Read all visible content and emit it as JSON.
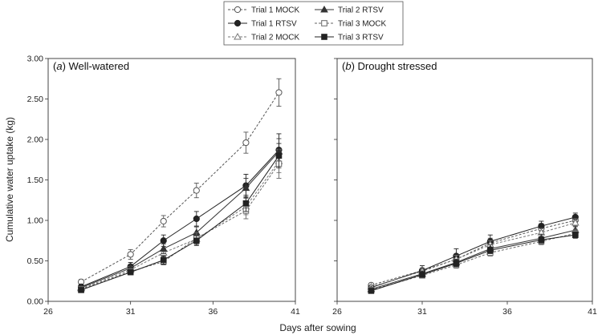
{
  "chart_data": {
    "type": "line",
    "legend": {
      "placement": "top-center",
      "entries": [
        {
          "label": "Trial 1 MOCK",
          "series": "Trial 1 MOCK"
        },
        {
          "label": "Trial 2 RTSV",
          "series": "Trial 2 RTSV"
        },
        {
          "label": "Trial 1 RTSV",
          "series": "Trial 1 RTSV"
        },
        {
          "label": "Trial 3 MOCK",
          "series": "Trial 3 MOCK"
        },
        {
          "label": "Trial 2 MOCK",
          "series": "Trial 2 MOCK"
        },
        {
          "label": "Trial 3 RTSV",
          "series": "Trial 3 RTSV"
        }
      ]
    },
    "xlabel": "Days after sowing",
    "ylabel": "Cumulative water uptake (kg)",
    "xlim": [
      26,
      41
    ],
    "ylim": [
      0,
      3
    ],
    "xticks": [
      "26",
      "31",
      "36",
      "41"
    ],
    "yticks": [
      "0.00",
      "0.50",
      "1.00",
      "1.50",
      "2.00",
      "2.50",
      "3.00"
    ],
    "series_styles": {
      "Trial 1 MOCK": {
        "marker": "circle-open",
        "dash": "3,2",
        "color": "#555555"
      },
      "Trial 1 RTSV": {
        "marker": "circle-filled",
        "dash": "",
        "color": "#222222"
      },
      "Trial 2 MOCK": {
        "marker": "triangle-open",
        "dash": "3,2",
        "color": "#777777"
      },
      "Trial 2 RTSV": {
        "marker": "triangle-filled",
        "dash": "",
        "color": "#333333"
      },
      "Trial 3 MOCK": {
        "marker": "square-open",
        "dash": "3,2",
        "color": "#666666"
      },
      "Trial 3 RTSV": {
        "marker": "square-filled",
        "dash": "",
        "color": "#222222"
      }
    },
    "panels": [
      {
        "label_prefix": "(",
        "label_letter": "a",
        "label_suffix": ") Well-watered",
        "x": [
          28,
          31,
          33,
          35,
          38,
          40
        ],
        "series": [
          {
            "name": "Trial 1 MOCK",
            "values": [
              0.24,
              0.58,
              0.99,
              1.37,
              1.96,
              2.58
            ],
            "err": [
              0.03,
              0.06,
              0.07,
              0.09,
              0.13,
              0.17
            ]
          },
          {
            "name": "Trial 1 RTSV",
            "values": [
              0.18,
              0.43,
              0.75,
              1.02,
              1.43,
              1.87
            ],
            "err": [
              0.03,
              0.05,
              0.07,
              0.09,
              0.14,
              0.2
            ]
          },
          {
            "name": "Trial 2 MOCK",
            "values": [
              0.16,
              0.39,
              0.6,
              0.77,
              1.17,
              1.73
            ],
            "err": [
              0.02,
              0.04,
              0.05,
              0.07,
              0.1,
              0.14
            ]
          },
          {
            "name": "Trial 2 RTSV",
            "values": [
              0.17,
              0.41,
              0.65,
              0.85,
              1.4,
              1.85
            ],
            "err": [
              0.02,
              0.04,
              0.06,
              0.07,
              0.12,
              0.16
            ]
          },
          {
            "name": "Trial 3 MOCK",
            "values": [
              0.15,
              0.37,
              0.49,
              0.78,
              1.12,
              1.7
            ],
            "err": [
              0.02,
              0.03,
              0.04,
              0.07,
              0.1,
              0.18
            ]
          },
          {
            "name": "Trial 3 RTSV",
            "values": [
              0.14,
              0.36,
              0.51,
              0.75,
              1.21,
              1.8
            ],
            "err": [
              0.02,
              0.03,
              0.05,
              0.06,
              0.1,
              0.15
            ]
          }
        ]
      },
      {
        "label_prefix": "(",
        "label_letter": "b",
        "label_suffix": ") Drought stressed",
        "x": [
          28,
          31,
          33,
          35,
          38,
          40
        ],
        "series": [
          {
            "name": "Trial 1 MOCK",
            "values": [
              0.2,
              0.38,
              0.52,
              0.72,
              0.9,
              1.0
            ],
            "err": [
              0.02,
              0.03,
              0.05,
              0.06,
              0.06,
              0.05
            ]
          },
          {
            "name": "Trial 1 RTSV",
            "values": [
              0.17,
              0.38,
              0.56,
              0.74,
              0.93,
              1.04
            ],
            "err": [
              0.02,
              0.06,
              0.09,
              0.08,
              0.06,
              0.05
            ]
          },
          {
            "name": "Trial 2 MOCK",
            "values": [
              0.18,
              0.37,
              0.52,
              0.7,
              0.85,
              0.97
            ],
            "err": [
              0.02,
              0.03,
              0.05,
              0.05,
              0.05,
              0.05
            ]
          },
          {
            "name": "Trial 2 RTSV",
            "values": [
              0.15,
              0.34,
              0.48,
              0.65,
              0.78,
              0.88
            ],
            "err": [
              0.02,
              0.03,
              0.04,
              0.05,
              0.05,
              0.05
            ]
          },
          {
            "name": "Trial 3 MOCK",
            "values": [
              0.14,
              0.32,
              0.45,
              0.6,
              0.74,
              0.84
            ],
            "err": [
              0.02,
              0.03,
              0.04,
              0.04,
              0.04,
              0.05
            ]
          },
          {
            "name": "Trial 3 RTSV",
            "values": [
              0.13,
              0.33,
              0.47,
              0.63,
              0.76,
              0.82
            ],
            "err": [
              0.02,
              0.03,
              0.04,
              0.04,
              0.04,
              0.04
            ]
          }
        ]
      }
    ]
  }
}
